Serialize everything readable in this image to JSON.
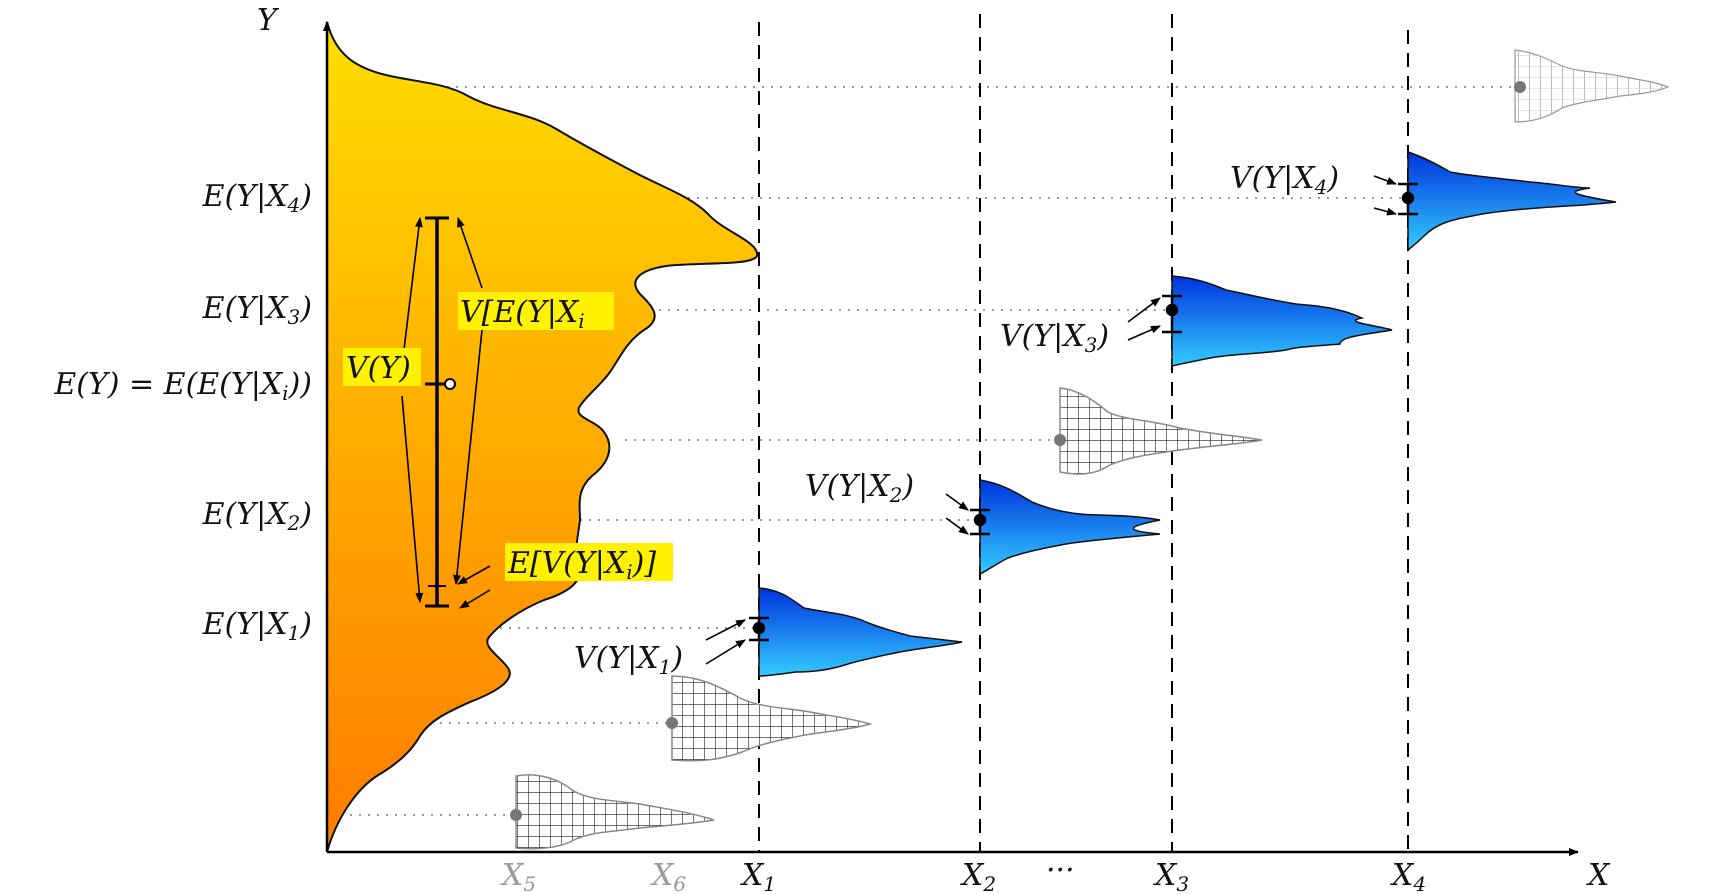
{
  "axes": {
    "y_label": "Y",
    "x_label": "X"
  },
  "x_ticks": [
    {
      "id": "x5",
      "base": "X",
      "sub": "5",
      "style": "gray"
    },
    {
      "id": "x6",
      "base": "X",
      "sub": "6",
      "style": "gray"
    },
    {
      "id": "x1",
      "base": "X",
      "sub": "1",
      "style": "black"
    },
    {
      "id": "x2",
      "base": "X",
      "sub": "2",
      "style": "black"
    },
    {
      "id": "ellipsis",
      "text": "···",
      "style": "black"
    },
    {
      "id": "x3",
      "base": "X",
      "sub": "3",
      "style": "black"
    },
    {
      "id": "x4",
      "base": "X",
      "sub": "4",
      "style": "black"
    }
  ],
  "y_labels": [
    {
      "id": "ex4",
      "text": "E(Y|X",
      "sub": "4",
      "close": ")"
    },
    {
      "id": "ex3",
      "text": "E(Y|X",
      "sub": "3",
      "close": ")"
    },
    {
      "id": "ey",
      "text": "E(Y) = E(E(Y|X",
      "sub": "i",
      "close": "))"
    },
    {
      "id": "ex2",
      "text": "E(Y|X",
      "sub": "2",
      "close": ")"
    },
    {
      "id": "ex1",
      "text": "E(Y|X",
      "sub": "1",
      "close": ")"
    }
  ],
  "variance_labels": [
    {
      "id": "vx1",
      "text": "V(Y|X",
      "sub": "1",
      "close": ")"
    },
    {
      "id": "vx2",
      "text": "V(Y|X",
      "sub": "2",
      "close": ")"
    },
    {
      "id": "vx3",
      "text": "V(Y|X",
      "sub": "3",
      "close": ")"
    },
    {
      "id": "vx4",
      "text": "V(Y|X",
      "sub": "4",
      "close": ")"
    }
  ],
  "highlight_labels": {
    "total_variance": {
      "text": "V(Y)"
    },
    "variance_of_expectation": {
      "text": "V[E(Y|X",
      "sub": "i",
      "close": ""
    },
    "expectation_of_variance": {
      "text": "E[V(Y|X",
      "sub": "i",
      "close": ")]"
    }
  },
  "colors": {
    "marginal_top": "#ffdd00",
    "marginal_bottom": "#ff7b00",
    "conditional_top": "#0033dd",
    "conditional_bottom": "#33ccff",
    "highlight": "#fff200",
    "gray_label": "#9a9a9a"
  }
}
